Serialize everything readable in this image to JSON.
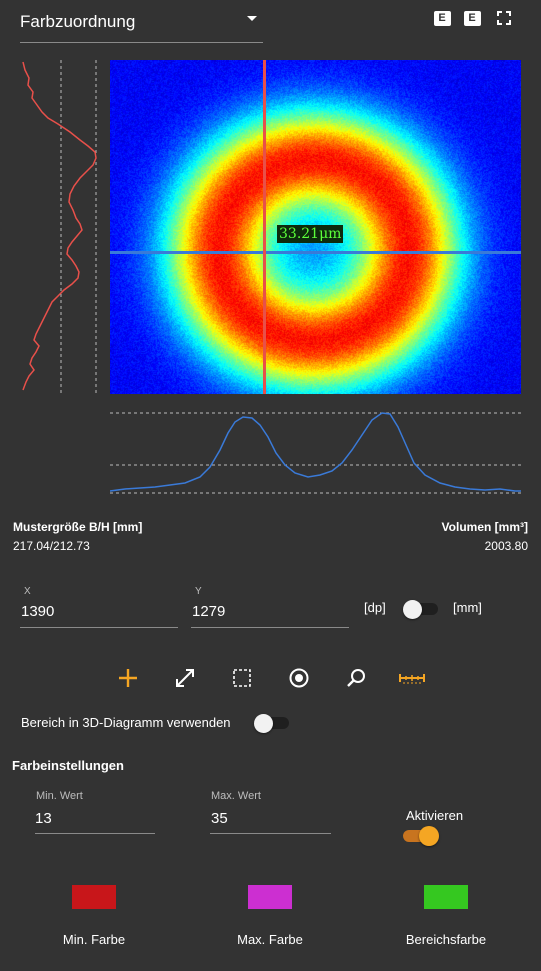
{
  "header": {
    "title": "Farbzuordnung",
    "icons": [
      "e-icon",
      "e-icon",
      "fullscreen-icon"
    ],
    "icon_labels": [
      "E",
      "E"
    ]
  },
  "plot": {
    "measurement_label": "33.21μm",
    "colors": {
      "left_profile": "#e8504a",
      "bottom_profile": "#3a7ad8",
      "crosshair_h": "#3a7ad8",
      "crosshair_v": "#e8504a"
    }
  },
  "info": {
    "size_label": "Mustergröße B/H [mm]",
    "size_value": "217.04/212.73",
    "volume_label": "Volumen [mm³]",
    "volume_value": "2003.80"
  },
  "coords": {
    "x_label": "X",
    "x_value": "1390",
    "y_label": "Y",
    "y_value": "1279",
    "unit_left": "[dp]",
    "unit_right": "[mm]",
    "unit_toggle_on": false
  },
  "tools": [
    "plus-icon",
    "diagonal-resize-icon",
    "dashed-rect-icon",
    "target-circle-icon",
    "magnifier-icon",
    "ruler-icon"
  ],
  "tool_colors": {
    "active": "#f5a623",
    "default": "#ffffff"
  },
  "range3d": {
    "label": "Bereich in 3D-Diagramm verwenden",
    "on": false
  },
  "color_settings": {
    "heading": "Farbeinstellungen",
    "min_label": "Min. Wert",
    "min_value": "13",
    "max_label": "Max. Wert",
    "max_value": "35",
    "activate_label": "Aktivieren",
    "activate_on": true,
    "accent": "#f28c28"
  },
  "swatches": [
    {
      "label": "Min. Farbe",
      "color": "#c8161a"
    },
    {
      "label": "Max. Farbe",
      "color": "#cc2fd1"
    },
    {
      "label": "Bereichsfarbe",
      "color": "#35c820"
    }
  ]
}
